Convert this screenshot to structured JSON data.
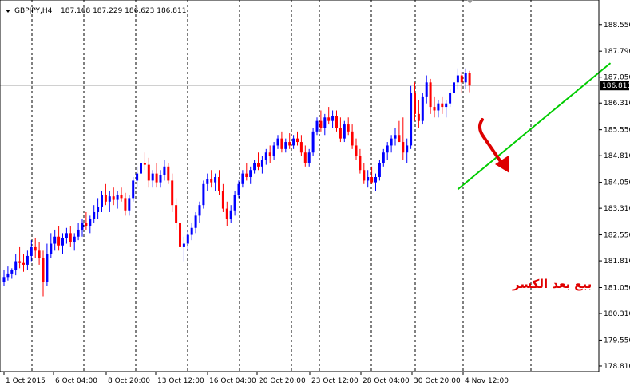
{
  "header": {
    "symbol": "GBPJPY,H4",
    "ohlc": "187.168 187.229 186.623 186.811"
  },
  "annotation": {
    "text": "بيع بعد الكسر"
  },
  "colors": {
    "bull": "#0000ff",
    "bear": "#ff0000",
    "trendline": "#00cc00",
    "arrow": "#dd0000",
    "grid": "#000000",
    "price_line": "#c0c0c0"
  },
  "chart_data": {
    "type": "candlestick",
    "title": "GBPJPY,H4",
    "current_price": "186.811",
    "ylim": [
      178.65,
      189.25
    ],
    "y_ticks": [
      "188.550",
      "187.790",
      "187.050",
      "186.310",
      "185.550",
      "184.810",
      "184.050",
      "183.310",
      "182.550",
      "181.810",
      "181.050",
      "180.310",
      "179.550",
      "178.810"
    ],
    "x_ticks": [
      "1 Oct 2015",
      "6 Oct 04:00",
      "8 Oct 20:00",
      "13 Oct 12:00",
      "16 Oct 04:00",
      "20 Oct 20:00",
      "23 Oct 12:00",
      "28 Oct 04:00",
      "30 Oct 20:00",
      "4 Nov 12:00"
    ],
    "grid": "vertical dashed at x ticks",
    "trendline": {
      "from": [
        116,
        183.85
      ],
      "to": [
        155,
        187.45
      ]
    },
    "candles": [
      [
        181.2,
        181.55,
        181.1,
        181.35
      ],
      [
        181.35,
        181.65,
        181.25,
        181.45
      ],
      [
        181.45,
        181.6,
        181.3,
        181.55
      ],
      [
        181.55,
        182.0,
        181.4,
        181.8
      ],
      [
        181.8,
        182.2,
        181.6,
        181.75
      ],
      [
        181.75,
        182.0,
        181.5,
        181.7
      ],
      [
        181.7,
        182.1,
        181.55,
        181.95
      ],
      [
        181.95,
        182.4,
        181.8,
        182.2
      ],
      [
        182.2,
        182.45,
        181.9,
        182.1
      ],
      [
        182.1,
        182.35,
        181.7,
        181.9
      ],
      [
        181.9,
        182.1,
        180.8,
        181.2
      ],
      [
        181.2,
        182.3,
        181.1,
        182.0
      ],
      [
        182.0,
        182.6,
        181.9,
        182.3
      ],
      [
        182.3,
        182.7,
        182.1,
        182.5
      ],
      [
        182.5,
        182.8,
        182.1,
        182.25
      ],
      [
        182.25,
        182.6,
        182.0,
        182.45
      ],
      [
        182.45,
        182.75,
        182.3,
        182.6
      ],
      [
        182.6,
        182.8,
        182.2,
        182.35
      ],
      [
        182.35,
        182.6,
        182.1,
        182.5
      ],
      [
        182.5,
        182.9,
        182.4,
        182.7
      ],
      [
        182.7,
        183.0,
        182.5,
        182.9
      ],
      [
        182.9,
        183.2,
        182.7,
        182.8
      ],
      [
        182.8,
        183.1,
        182.6,
        183.0
      ],
      [
        183.0,
        183.4,
        182.9,
        183.2
      ],
      [
        183.2,
        183.6,
        183.0,
        183.35
      ],
      [
        183.35,
        183.8,
        183.2,
        183.7
      ],
      [
        183.7,
        184.0,
        183.4,
        183.5
      ],
      [
        183.5,
        183.8,
        183.2,
        183.65
      ],
      [
        183.65,
        183.9,
        183.4,
        183.55
      ],
      [
        183.55,
        183.8,
        183.3,
        183.7
      ],
      [
        183.7,
        183.9,
        183.5,
        183.6
      ],
      [
        183.6,
        183.75,
        183.1,
        183.25
      ],
      [
        183.25,
        183.7,
        183.1,
        183.6
      ],
      [
        183.6,
        184.2,
        183.5,
        184.1
      ],
      [
        184.1,
        184.5,
        183.9,
        184.3
      ],
      [
        184.3,
        184.8,
        184.2,
        184.6
      ],
      [
        184.6,
        184.9,
        184.4,
        184.55
      ],
      [
        184.55,
        184.75,
        183.9,
        184.1
      ],
      [
        184.1,
        184.4,
        183.9,
        184.3
      ],
      [
        184.3,
        184.6,
        183.9,
        184.05
      ],
      [
        184.05,
        184.4,
        183.9,
        184.25
      ],
      [
        184.25,
        184.7,
        184.1,
        184.5
      ],
      [
        184.5,
        184.6,
        184.0,
        184.1
      ],
      [
        184.1,
        184.3,
        183.2,
        183.4
      ],
      [
        183.4,
        183.6,
        182.7,
        182.9
      ],
      [
        182.9,
        183.1,
        181.9,
        182.2
      ],
      [
        182.2,
        182.5,
        181.8,
        182.3
      ],
      [
        182.3,
        182.7,
        182.1,
        182.55
      ],
      [
        182.55,
        182.9,
        182.4,
        182.75
      ],
      [
        182.75,
        183.2,
        182.6,
        183.1
      ],
      [
        183.1,
        183.5,
        182.9,
        183.4
      ],
      [
        183.4,
        184.1,
        183.3,
        184.0
      ],
      [
        184.0,
        184.3,
        183.8,
        184.15
      ],
      [
        184.15,
        184.4,
        183.9,
        184.05
      ],
      [
        184.05,
        184.3,
        183.8,
        184.2
      ],
      [
        184.2,
        184.4,
        183.7,
        183.8
      ],
      [
        183.8,
        184.0,
        183.2,
        183.3
      ],
      [
        183.3,
        183.5,
        182.8,
        183.0
      ],
      [
        183.0,
        183.4,
        182.9,
        183.25
      ],
      [
        183.25,
        183.8,
        183.1,
        183.7
      ],
      [
        183.7,
        184.1,
        183.6,
        184.0
      ],
      [
        184.0,
        184.4,
        183.9,
        184.3
      ],
      [
        184.3,
        184.6,
        184.1,
        184.2
      ],
      [
        184.2,
        184.5,
        184.0,
        184.4
      ],
      [
        184.4,
        184.7,
        184.3,
        184.6
      ],
      [
        184.6,
        184.9,
        184.4,
        184.5
      ],
      [
        184.5,
        184.8,
        184.3,
        184.7
      ],
      [
        184.7,
        185.0,
        184.55,
        184.9
      ],
      [
        184.9,
        185.1,
        184.6,
        184.8
      ],
      [
        184.8,
        185.2,
        184.7,
        185.1
      ],
      [
        185.1,
        185.4,
        185.0,
        185.3
      ],
      [
        185.3,
        185.5,
        184.9,
        185.0
      ],
      [
        185.0,
        185.3,
        184.9,
        185.2
      ],
      [
        185.2,
        185.45,
        185.0,
        185.1
      ],
      [
        185.1,
        185.4,
        185.0,
        185.3
      ],
      [
        185.3,
        185.5,
        185.1,
        185.2
      ],
      [
        185.2,
        185.4,
        184.8,
        184.9
      ],
      [
        184.9,
        185.1,
        184.5,
        184.6
      ],
      [
        184.6,
        185.0,
        184.5,
        184.9
      ],
      [
        184.9,
        185.6,
        184.8,
        185.5
      ],
      [
        185.5,
        185.9,
        185.4,
        185.8
      ],
      [
        185.8,
        186.1,
        185.5,
        185.6
      ],
      [
        185.6,
        186.0,
        185.4,
        185.9
      ],
      [
        185.9,
        186.2,
        185.7,
        185.8
      ],
      [
        185.8,
        186.1,
        185.6,
        185.95
      ],
      [
        185.95,
        186.1,
        185.5,
        185.6
      ],
      [
        185.6,
        185.9,
        185.2,
        185.3
      ],
      [
        185.3,
        185.8,
        185.2,
        185.7
      ],
      [
        185.7,
        185.9,
        185.4,
        185.5
      ],
      [
        185.5,
        185.7,
        185.0,
        185.1
      ],
      [
        185.1,
        185.3,
        184.7,
        184.8
      ],
      [
        184.8,
        185.0,
        184.3,
        184.4
      ],
      [
        184.4,
        184.6,
        184.0,
        184.1
      ],
      [
        184.1,
        184.4,
        183.9,
        184.2
      ],
      [
        184.2,
        184.5,
        184.0,
        184.05
      ],
      [
        184.05,
        184.3,
        183.8,
        184.2
      ],
      [
        184.2,
        184.7,
        184.1,
        184.6
      ],
      [
        184.6,
        185.0,
        184.5,
        184.9
      ],
      [
        184.9,
        185.2,
        184.7,
        185.1
      ],
      [
        185.1,
        185.4,
        184.9,
        185.3
      ],
      [
        185.3,
        185.6,
        185.1,
        185.4
      ],
      [
        185.4,
        185.8,
        185.2,
        185.2
      ],
      [
        185.2,
        185.9,
        184.7,
        184.9
      ],
      [
        184.9,
        185.3,
        184.6,
        185.1
      ],
      [
        185.1,
        186.8,
        185.0,
        186.6
      ],
      [
        186.6,
        186.9,
        185.8,
        186.0
      ],
      [
        186.0,
        186.4,
        185.6,
        185.8
      ],
      [
        185.8,
        186.6,
        185.7,
        186.5
      ],
      [
        186.5,
        187.1,
        186.3,
        186.9
      ],
      [
        186.9,
        187.0,
        186.0,
        186.2
      ],
      [
        186.2,
        186.5,
        185.9,
        186.1
      ],
      [
        186.1,
        186.4,
        185.9,
        186.3
      ],
      [
        186.3,
        186.5,
        186.0,
        186.2
      ],
      [
        186.2,
        186.4,
        185.9,
        186.3
      ],
      [
        186.3,
        186.7,
        186.2,
        186.6
      ],
      [
        186.6,
        187.0,
        186.4,
        186.9
      ],
      [
        186.9,
        187.3,
        186.7,
        187.1
      ],
      [
        187.1,
        187.2,
        186.6,
        186.9
      ],
      [
        186.9,
        187.3,
        186.7,
        187.17
      ],
      [
        187.17,
        187.23,
        186.62,
        186.81
      ]
    ]
  }
}
